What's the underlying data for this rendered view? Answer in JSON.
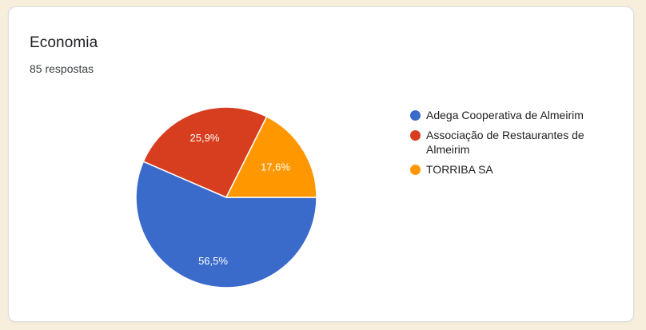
{
  "theme": {
    "page_background": "#f7eedc",
    "card_background": "#ffffff",
    "card_border": "#dadce0",
    "label_text_color": "#ffffff"
  },
  "chart_data": {
    "type": "pie",
    "title": "Economia",
    "subtitle": "85 respostas",
    "total_responses": 85,
    "legend_position": "right",
    "start_angle_deg": 0,
    "direction": "clockwise",
    "grid": false,
    "slices": [
      {
        "label": "Adega Cooperativa de Almeirim",
        "value": 56.5,
        "percent_label": "56,5%",
        "color": "#3b6bca",
        "label_r": 0.72
      },
      {
        "label": "Associação de Restaurantes de Almeirim",
        "value": 25.9,
        "percent_label": "25,9%",
        "color": "#d63e1f",
        "label_r": 0.7
      },
      {
        "label": "TORRIBA SA",
        "value": 17.6,
        "percent_label": "17,6%",
        "color": "#ff9800",
        "label_r": 0.64
      }
    ]
  }
}
